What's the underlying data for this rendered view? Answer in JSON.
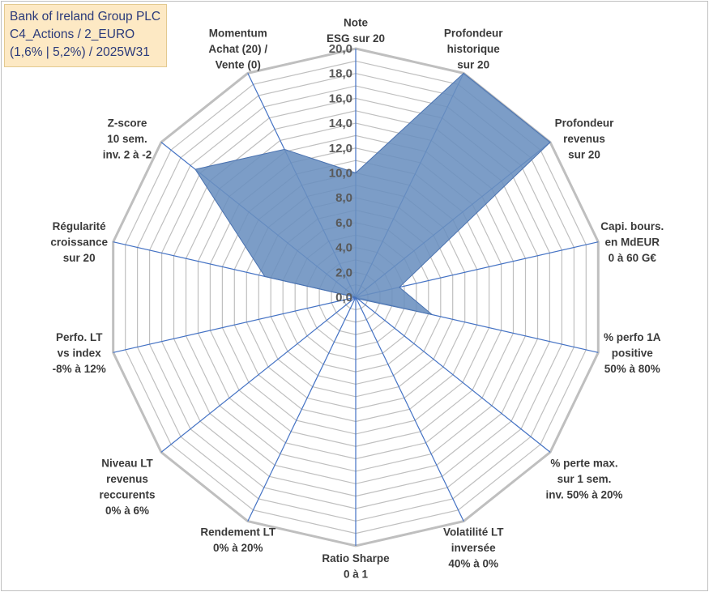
{
  "header": {
    "lines": [
      "Bank of Ireland Group PLC",
      "C4_Actions / 2_EURO",
      "(1,6% | 5,2%) / 2025W31"
    ]
  },
  "chart_data": {
    "type": "radar",
    "rmax": 20,
    "ticks": [
      "0,0",
      "2,0",
      "4,0",
      "6,0",
      "8,0",
      "10,0",
      "12,0",
      "14,0",
      "16,0",
      "18,0",
      "20,0"
    ],
    "tick_values": [
      0,
      2,
      4,
      6,
      8,
      10,
      12,
      14,
      16,
      18,
      20
    ],
    "grid_step": 1,
    "colors": {
      "fill": "#6a8fbf",
      "stroke": "#4a72b0",
      "grid": "#bfbfbf",
      "spoke": "#4472c4"
    },
    "axes": [
      {
        "label": [
          "Note",
          "ESG sur 20"
        ],
        "value": 10.0
      },
      {
        "label": [
          "Profondeur",
          "historique",
          "sur 20"
        ],
        "value": 20.0
      },
      {
        "label": [
          "Profondeur",
          "revenus",
          "sur 20"
        ],
        "value": 20.0
      },
      {
        "label": [
          "Capi. bours.",
          "en MdEUR",
          "0 à 60 G€"
        ],
        "value": 3.6
      },
      {
        "label": [
          "% perfo 1A",
          "positive",
          "50% à 80%"
        ],
        "value": 6.3
      },
      {
        "label": [
          "% perte max.",
          "sur 1 sem.",
          "inv. 50% à 20%"
        ],
        "value": 0.2
      },
      {
        "label": [
          "Volatilité LT",
          "inversée",
          "40% à 0%"
        ],
        "value": 0.0
      },
      {
        "label": [
          "Ratio Sharpe",
          "0 à 1"
        ],
        "value": 0.0
      },
      {
        "label": [
          "Rendement LT",
          "0% à 20%"
        ],
        "value": 0.0
      },
      {
        "label": [
          "Niveau LT",
          "revenus",
          "reccurents",
          "0% à 6%"
        ],
        "value": 0.0
      },
      {
        "label": [
          "Perfo. LT",
          "vs index",
          "-8% à 12%"
        ],
        "value": 0.0
      },
      {
        "label": [
          "Régularité",
          "croissance",
          "sur 20"
        ],
        "value": 7.5
      },
      {
        "label": [
          "Z-score",
          "10 sem.",
          "inv. 2 à -2"
        ],
        "value": 16.5
      },
      {
        "label": [
          "Momentum",
          "Achat (20) /",
          "Vente (0)"
        ],
        "value": 13.2
      }
    ]
  }
}
